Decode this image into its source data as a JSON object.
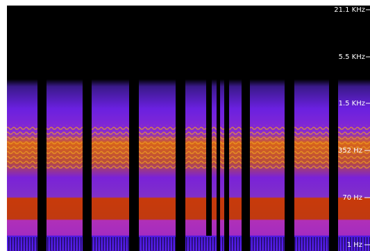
{
  "frequency_axis": {
    "labels": [
      "21.1 KHz",
      "5.5 KHz",
      "1.5 KHz",
      "352 Hz",
      "70 Hz",
      "1 Hz"
    ]
  }
}
